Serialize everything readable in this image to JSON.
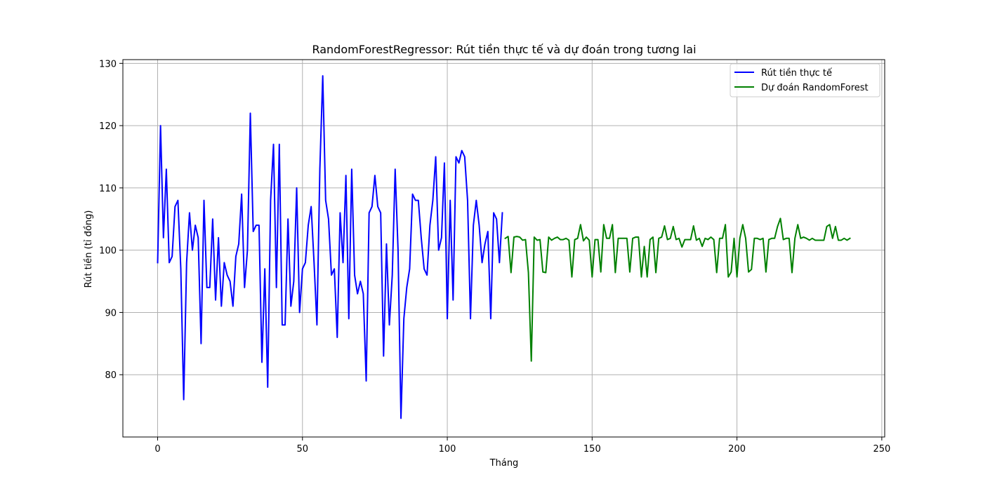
{
  "chart_data": {
    "type": "line",
    "title": "RandomForestRegressor: Rút tiền thực tế và dự đoán trong tương lai",
    "xlabel": "Tháng",
    "ylabel": "Rút tiền (tỉ đồng)",
    "xlim": [
      -12,
      251
    ],
    "ylim": [
      70,
      130.6
    ],
    "xticks": [
      0,
      50,
      100,
      150,
      200,
      250
    ],
    "yticks": [
      80,
      90,
      100,
      110,
      120,
      130
    ],
    "grid": true,
    "legend_position": "top-right",
    "series": [
      {
        "name": "Rút tiền thực tế",
        "color": "#0000ff",
        "x_start": 0,
        "values": [
          98,
          120,
          102,
          113,
          98,
          99,
          107,
          108,
          97,
          76,
          98,
          106,
          100,
          104,
          102,
          85,
          108,
          94,
          94,
          105,
          92,
          102,
          91,
          98,
          96,
          95,
          91,
          99,
          101,
          109,
          94,
          100,
          122,
          103,
          104,
          104,
          82,
          97,
          78,
          108,
          117,
          94,
          117,
          88,
          88,
          105,
          91,
          95,
          110,
          90,
          97,
          98,
          104,
          107,
          98,
          88,
          113,
          128,
          108,
          105,
          96,
          97,
          86,
          106,
          98,
          112,
          89,
          113,
          96,
          93,
          95,
          93,
          79,
          106,
          107,
          112,
          107,
          106,
          83,
          101,
          88,
          96,
          113,
          100,
          73,
          89,
          94,
          97,
          109,
          108,
          108,
          102,
          97,
          96,
          104,
          108,
          115,
          100,
          102,
          114,
          89,
          108,
          92,
          115,
          114,
          116,
          115,
          108,
          89,
          104,
          108,
          104,
          98,
          101,
          103,
          89,
          106,
          105,
          98,
          106
        ]
      },
      {
        "name": "Dự đoán RandomForest",
        "color": "#008000",
        "x_start": 120,
        "values": [
          101.9,
          102.2,
          96.4,
          102.1,
          102.2,
          102.1,
          101.6,
          101.7,
          96.4,
          82.2,
          102.1,
          101.6,
          101.7,
          96.5,
          96.4,
          102.1,
          101.6,
          101.9,
          102.1,
          101.7,
          101.7,
          101.9,
          101.6,
          95.7,
          101.7,
          101.9,
          104.1,
          101.5,
          102.1,
          101.6,
          95.7,
          101.7,
          101.7,
          96.5,
          104.1,
          101.9,
          101.9,
          104.1,
          96.4,
          101.9,
          101.9,
          101.9,
          101.9,
          96.5,
          101.9,
          102.1,
          102.1,
          95.7,
          100.6,
          95.7,
          101.7,
          102.1,
          96.4,
          101.9,
          102.1,
          103.9,
          101.7,
          101.9,
          103.8,
          101.7,
          101.9,
          100.5,
          101.7,
          101.7,
          101.7,
          103.9,
          101.6,
          101.9,
          100.6,
          101.9,
          101.7,
          102.1,
          101.7,
          96.4,
          101.9,
          101.9,
          104.1,
          95.7,
          96.5,
          101.9,
          95.7,
          101.9,
          104.1,
          101.9,
          96.5,
          96.9,
          101.9,
          101.9,
          101.7,
          101.9,
          96.5,
          101.7,
          101.9,
          101.9,
          103.8,
          105.1,
          101.7,
          101.9,
          101.9,
          96.4,
          101.9,
          104.1,
          101.9,
          102.1,
          101.9,
          101.6,
          101.9,
          101.6,
          101.6,
          101.6,
          101.6,
          103.8,
          104.1,
          101.9,
          103.8,
          101.6,
          101.6,
          101.9,
          101.6,
          101.9
        ]
      }
    ]
  }
}
